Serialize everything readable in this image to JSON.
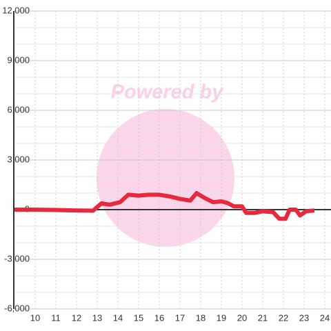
{
  "chart_data": {
    "type": "line",
    "watermark": "Powered by",
    "x": [
      9,
      10,
      11,
      12,
      12.8,
      13.2,
      13.6,
      14.1,
      14.5,
      15,
      15.5,
      16,
      16.5,
      17,
      17.5,
      17.8,
      18.2,
      18.6,
      19,
      19.3,
      19.6,
      20,
      20.2,
      20.6,
      21,
      21.5,
      21.8,
      22.1,
      22.3,
      22.6,
      22.8,
      23.1,
      23.5
    ],
    "series": [
      {
        "color": "#e8283c",
        "values": [
          0,
          0,
          -20,
          -50,
          -60,
          380,
          300,
          450,
          900,
          850,
          900,
          900,
          800,
          650,
          550,
          1000,
          700,
          450,
          500,
          400,
          200,
          200,
          -200,
          -200,
          -100,
          -150,
          -550,
          -550,
          0,
          0,
          -350,
          -100,
          -50
        ]
      }
    ],
    "xlim": [
      9,
      24.3
    ],
    "xticks": [
      10,
      11,
      12,
      13,
      14,
      15,
      16,
      17,
      18,
      19,
      20,
      21,
      22,
      23,
      24
    ],
    "ylim": [
      -6000,
      12000
    ],
    "yticks": [
      {
        "value": -6000,
        "label": "-6,000"
      },
      {
        "value": -3000,
        "label": "-3,000"
      },
      0,
      {
        "value": 3000,
        "label": "3,000"
      },
      {
        "value": 6000,
        "label": "6,000"
      },
      {
        "value": 9000,
        "label": "9,000"
      },
      {
        "value": 12000,
        "label": "12,000"
      }
    ],
    "y_minor_ticks": [
      -5000,
      -4000,
      -2000,
      -1000,
      1000,
      2000,
      4000,
      5000,
      7000,
      8000,
      10000,
      11000
    ],
    "grid": true
  }
}
